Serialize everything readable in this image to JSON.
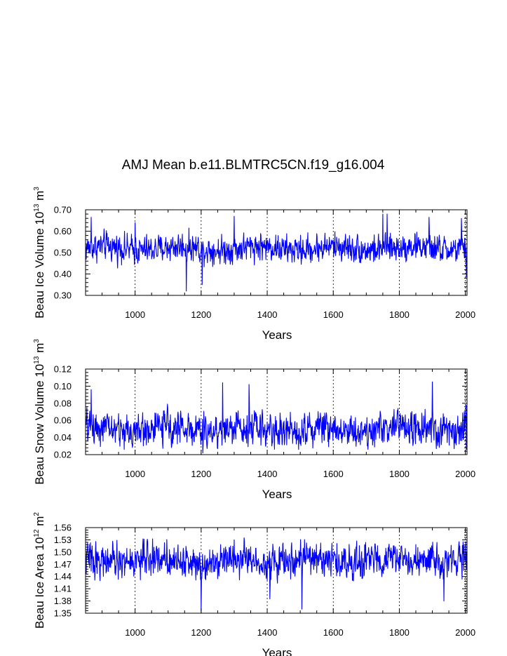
{
  "chart_data": [
    {
      "type": "line",
      "title": "AMJ Mean b.e11.BLMTRC5CN.f19_g16.004",
      "ylabel": {
        "pre": "Beau Ice Volume 10",
        "exp": "13",
        "mid": " m",
        "exp2": "3"
      },
      "xlabel": "Years",
      "xlim": [
        850,
        2005
      ],
      "ylim": [
        0.3,
        0.7
      ],
      "xticks": [
        1000,
        1200,
        1400,
        1600,
        1800,
        2000
      ],
      "yticks": [
        0.3,
        0.4,
        0.5,
        0.6,
        0.7
      ],
      "ytick_labels": [
        "0.30",
        "0.40",
        "0.50",
        "0.60",
        "0.70"
      ],
      "dashed_vlines": [
        1000,
        1200,
        1400,
        1600,
        1800,
        2000
      ],
      "color": "#0000ff",
      "series": {
        "name": "Beau Ice Volume",
        "x_start": 850,
        "x_end": 2005,
        "mean": 0.52,
        "variability": 0.04,
        "notable_points": [
          [
            867,
            0.665
          ],
          [
            1000,
            0.64
          ],
          [
            1155,
            0.32
          ],
          [
            1203,
            0.35
          ],
          [
            1300,
            0.67
          ],
          [
            1750,
            0.68
          ],
          [
            1763,
            0.68
          ],
          [
            1890,
            0.665
          ],
          [
            1988,
            0.66
          ],
          [
            2003,
            0.385
          ]
        ]
      }
    },
    {
      "type": "line",
      "ylabel": {
        "pre": "Beau Snow Volume 10",
        "exp": "13",
        "mid": " m",
        "exp2": "3"
      },
      "xlabel": "Years",
      "xlim": [
        850,
        2005
      ],
      "ylim": [
        0.02,
        0.12
      ],
      "xticks": [
        1000,
        1200,
        1400,
        1600,
        1800,
        2000
      ],
      "yticks": [
        0.02,
        0.04,
        0.06,
        0.08,
        0.1,
        0.12
      ],
      "ytick_labels": [
        "0.02",
        "0.04",
        "0.06",
        "0.08",
        "0.10",
        "0.12"
      ],
      "dashed_vlines": [
        1000,
        1200,
        1400,
        1600,
        1800,
        2000
      ],
      "color": "#0000ff",
      "series": {
        "name": "Beau Snow Volume",
        "x_start": 850,
        "x_end": 2005,
        "mean": 0.05,
        "variability": 0.012,
        "notable_points": [
          [
            867,
            0.096
          ],
          [
            1265,
            0.104
          ],
          [
            1345,
            0.102
          ],
          [
            1900,
            0.105
          ],
          [
            1205,
            0.022
          ],
          [
            2003,
            0.026
          ]
        ]
      }
    },
    {
      "type": "line",
      "ylabel": {
        "pre": "Beau Ice Area 10",
        "exp": "12",
        "mid": " m",
        "exp2": "2"
      },
      "xlabel": "Years",
      "xlim": [
        850,
        2005
      ],
      "ylim": [
        1.35,
        1.56
      ],
      "xticks": [
        1000,
        1200,
        1400,
        1600,
        1800,
        2000
      ],
      "yticks": [
        1.35,
        1.38,
        1.41,
        1.44,
        1.47,
        1.5,
        1.53,
        1.56
      ],
      "ytick_labels": [
        "1.35",
        "1.38",
        "1.41",
        "1.44",
        "1.47",
        "1.50",
        "1.53",
        "1.56"
      ],
      "dashed_vlines": [
        1000,
        1200,
        1400,
        1600,
        1800,
        2000
      ],
      "color": "#0000ff",
      "series": {
        "name": "Beau Ice Area",
        "x_start": 850,
        "x_end": 2005,
        "mean": 1.48,
        "variability": 0.025,
        "notable_points": [
          [
            1200,
            1.355
          ],
          [
            1505,
            1.36
          ],
          [
            1935,
            1.38
          ],
          [
            1408,
            1.385
          ],
          [
            1330,
            1.535
          ]
        ]
      }
    }
  ]
}
